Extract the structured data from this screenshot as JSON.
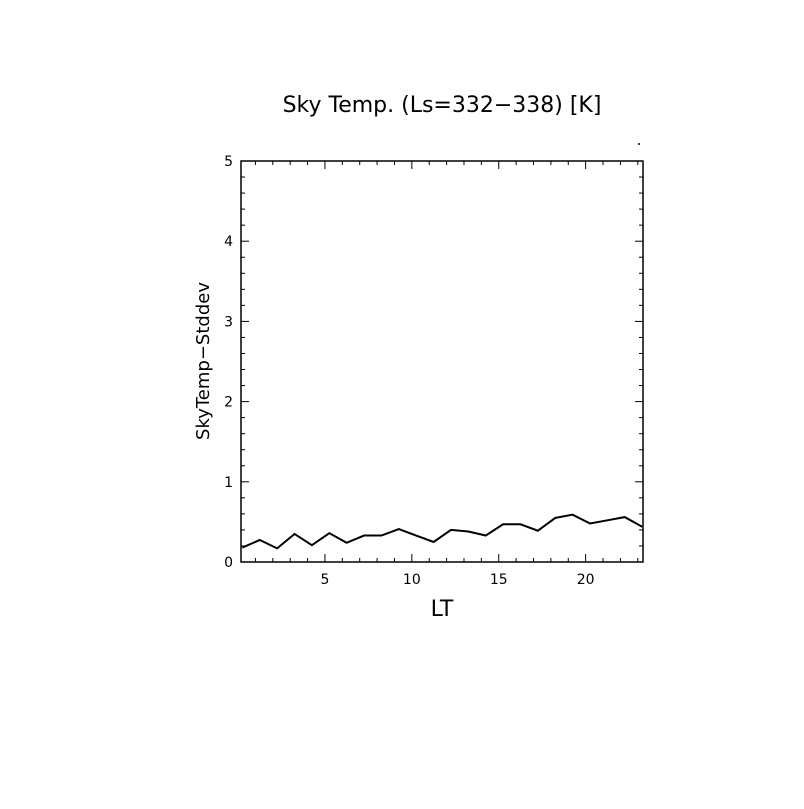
{
  "chart_data": {
    "type": "line",
    "title": "Sky Temp. (Ls=332−338) [K]",
    "xlabel": "LT",
    "ylabel": "SkyTemp−Stddev",
    "xlim": [
      0.17,
      23.3
    ],
    "ylim": [
      0,
      5
    ],
    "xticks": [
      5,
      10,
      15,
      20
    ],
    "yticks": [
      0,
      1,
      2,
      3,
      4,
      5
    ],
    "grid": false,
    "line_color": "#000000",
    "x": [
      0.25,
      1.25,
      2.25,
      3.25,
      4.25,
      5.25,
      6.25,
      7.25,
      8.25,
      9.25,
      10.25,
      11.25,
      12.25,
      13.25,
      14.25,
      15.25,
      16.25,
      17.25,
      18.25,
      19.25,
      20.25,
      21.25,
      22.25,
      23.25
    ],
    "values": [
      0.18,
      0.275,
      0.17,
      0.35,
      0.21,
      0.36,
      0.24,
      0.33,
      0.33,
      0.41,
      0.33,
      0.25,
      0.4,
      0.38,
      0.33,
      0.47,
      0.47,
      0.39,
      0.55,
      0.59,
      0.48,
      0.52,
      0.56,
      0.44
    ]
  }
}
